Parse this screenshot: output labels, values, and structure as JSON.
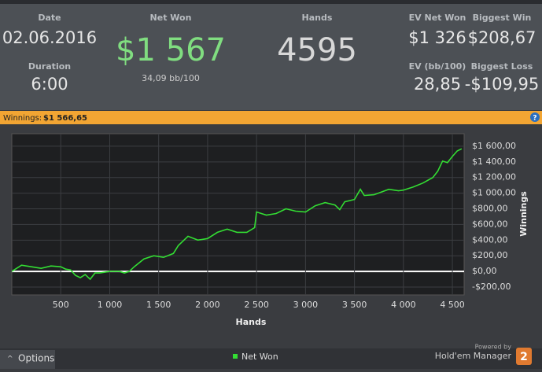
{
  "stats": {
    "date_label": "Date",
    "date": "02.06.2016",
    "duration_label": "Duration",
    "duration": "6:00",
    "net_won_label": "Net Won",
    "net_won": "$1 567",
    "bb100": "34,09 bb/100",
    "hands_label": "Hands",
    "hands": "4595",
    "ev_net_won_label": "EV Net Won",
    "ev_net_won": "$1 326",
    "ev_bb_label": "EV (bb/100)",
    "ev_bb": "28,85",
    "biggest_win_label": "Biggest Win",
    "biggest_win": "$208,67",
    "biggest_loss_label": "Biggest Loss",
    "biggest_loss": "-$109,95"
  },
  "banner": {
    "label": "Winnings:",
    "value": "$1 566,65",
    "help": "?"
  },
  "chart_data": {
    "type": "line",
    "x_label": "Hands",
    "y_label": "Winnings",
    "x": [
      0,
      100,
      200,
      300,
      400,
      500,
      550,
      600,
      650,
      700,
      750,
      800,
      850,
      900,
      1000,
      1100,
      1150,
      1200,
      1250,
      1350,
      1450,
      1550,
      1650,
      1700,
      1800,
      1900,
      2000,
      2100,
      2200,
      2300,
      2400,
      2480,
      2500,
      2600,
      2700,
      2800,
      2900,
      3000,
      3100,
      3200,
      3300,
      3350,
      3400,
      3500,
      3560,
      3600,
      3700,
      3850,
      3950,
      4000,
      4100,
      4200,
      4300,
      4350,
      4400,
      4450,
      4500,
      4550,
      4595
    ],
    "series": [
      {
        "name": "Net Won",
        "color": "#33dd33",
        "values": [
          0,
          80,
          60,
          40,
          70,
          60,
          30,
          20,
          -50,
          -80,
          -40,
          -100,
          -20,
          -20,
          0,
          0,
          -20,
          0,
          60,
          160,
          200,
          180,
          230,
          330,
          450,
          400,
          420,
          500,
          540,
          500,
          500,
          560,
          760,
          720,
          740,
          800,
          770,
          760,
          840,
          880,
          850,
          790,
          890,
          920,
          1050,
          970,
          980,
          1050,
          1030,
          1040,
          1080,
          1130,
          1200,
          1280,
          1410,
          1390,
          1470,
          1540,
          1567
        ]
      }
    ],
    "xlim": [
      0,
      4620
    ],
    "ylim": [
      -300,
      1760
    ],
    "xticks": [
      500,
      {
        "value": 1000,
        "label": "1 000"
      },
      {
        "value": 1500,
        "label": "1 500"
      },
      {
        "value": 2000,
        "label": "2 000"
      },
      {
        "value": 2500,
        "label": "2 500"
      },
      {
        "value": 3000,
        "label": "3 000"
      },
      {
        "value": 3500,
        "label": "3 500"
      },
      {
        "value": 4000,
        "label": "4 000"
      },
      {
        "value": 4500,
        "label": "4 500"
      }
    ],
    "yticks": [
      {
        "value": 1600,
        "label": "$1 600,00"
      },
      {
        "value": 1400,
        "label": "$1 400,00"
      },
      {
        "value": 1200,
        "label": "$1 200,00"
      },
      {
        "value": 1000,
        "label": "$1 000,00"
      },
      {
        "value": 800,
        "label": "$800,00"
      },
      {
        "value": 600,
        "label": "$600,00"
      },
      {
        "value": 400,
        "label": "$400,00"
      },
      {
        "value": 200,
        "label": "$200,00"
      },
      {
        "value": 0,
        "label": "$0,00"
      },
      {
        "value": -200,
        "label": "-$200,00"
      }
    ],
    "grid": true
  },
  "footer": {
    "options": "Options",
    "powered": "Powered by",
    "brand": "Hold'em Manager",
    "badge": "2"
  }
}
